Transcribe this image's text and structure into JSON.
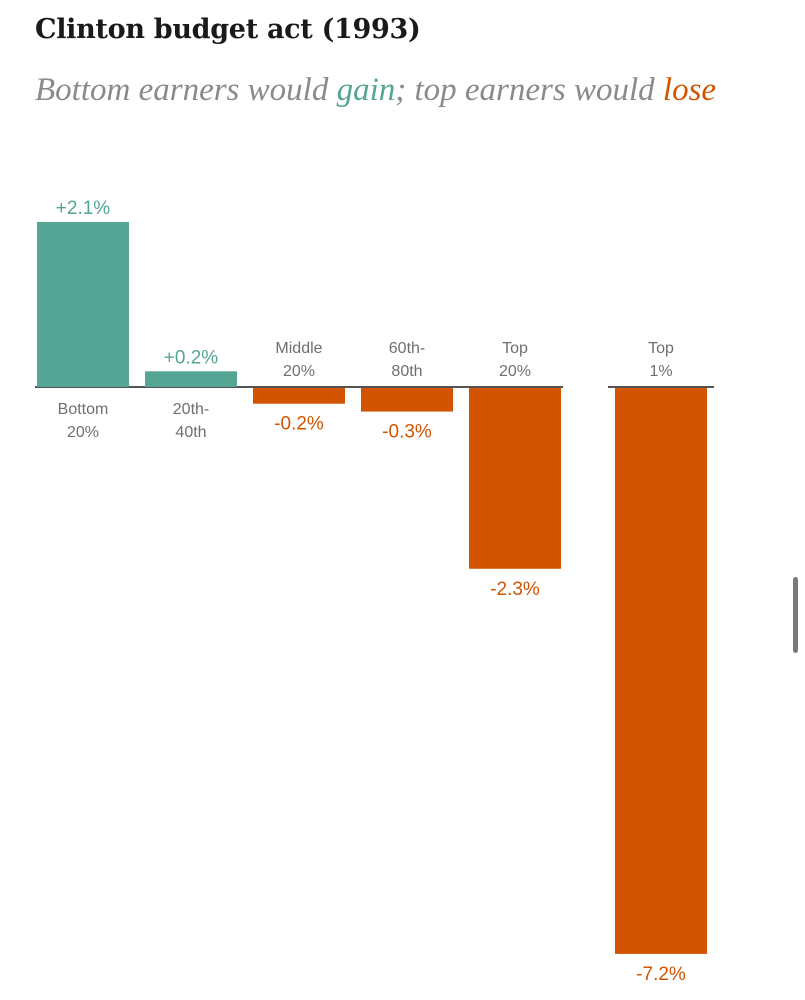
{
  "header": {
    "title": "Clinton budget act (1993)",
    "subtitle_part1": "Bottom earners would ",
    "subtitle_gain": "gain",
    "subtitle_part2": "; top earners would ",
    "subtitle_lose": "lose"
  },
  "colors": {
    "gain": "#55a594",
    "lose": "#d35400",
    "category_label": "#6f6f6f",
    "baseline": "#1a1a1a"
  },
  "chart_data": {
    "type": "bar",
    "title": "Clinton budget act (1993)",
    "subtitle": "Bottom earners would gain; top earners would lose",
    "xlabel": "",
    "ylabel": "",
    "unit": "%",
    "grid": false,
    "legend": "none",
    "categories": [
      [
        "Bottom",
        "20%"
      ],
      [
        "20th-",
        "40th"
      ],
      [
        "Middle",
        "20%"
      ],
      [
        "60th-",
        "80th"
      ],
      [
        "Top",
        "20%"
      ],
      [
        "Top",
        "1%"
      ]
    ],
    "values": [
      2.1,
      0.2,
      -0.2,
      -0.3,
      -2.3,
      -7.2
    ],
    "value_labels": [
      "+2.1%",
      "+0.2%",
      "-0.2%",
      "-0.3%",
      "-2.3%",
      "-7.2%"
    ],
    "ylim": [
      -7.2,
      2.1
    ]
  }
}
